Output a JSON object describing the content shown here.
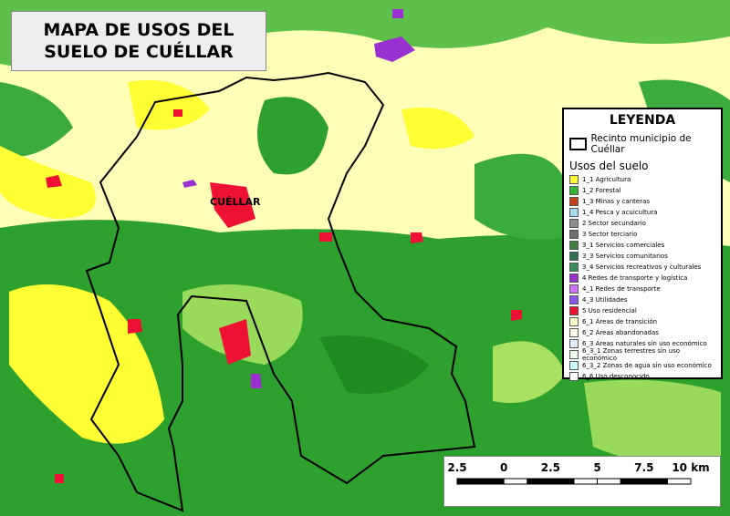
{
  "header": {
    "title": "MAPA DE USOS DEL SUELO DE CUÉLLAR"
  },
  "map": {
    "town_label": "CUÉLLAR"
  },
  "legend": {
    "title": "LEYENDA",
    "boundary": {
      "label": "Recinto municipio de Cuéllar"
    },
    "subtitle": "Usos del suelo",
    "items": [
      {
        "label": "1_1 Agricultura",
        "color": "#ffff33"
      },
      {
        "label": "1_2 Forestal",
        "color": "#33b833"
      },
      {
        "label": "1_3 Minas y canteras",
        "color": "#c8401a"
      },
      {
        "label": "1_4 Pesca y acuicultura",
        "color": "#a8dcf0"
      },
      {
        "label": "2 Sector secundario",
        "color": "#8c8c8c"
      },
      {
        "label": "3 Sector terciario",
        "color": "#6e6e6e"
      },
      {
        "label": "3_1 Servicios comerciales",
        "color": "#3f7f3f"
      },
      {
        "label": "3_3 Servicios comunitarios",
        "color": "#2f7050"
      },
      {
        "label": "3_4 Servicios recreativos y culturales",
        "color": "#3a9060"
      },
      {
        "label": "4 Redes de transporte y logística",
        "color": "#9b30d0"
      },
      {
        "label": "4_1 Redes de transporte",
        "color": "#d070ff"
      },
      {
        "label": "4_3 Utilidades",
        "color": "#8855ee"
      },
      {
        "label": "5 Uso residencial",
        "color": "#ee1133"
      },
      {
        "label": "6_1 Áreas de transición",
        "color": "#ffffc8"
      },
      {
        "label": "6_2 Áreas abandonadas",
        "color": "#fff8e8"
      },
      {
        "label": "6_3 Áreas naturales sin uso económico",
        "color": "#e0ecff"
      },
      {
        "label": "6_3_1 Zonas terrestres sin uso económico",
        "color": "#eaffea"
      },
      {
        "label": "6_3_2 Zonas de agua sin uso económico",
        "color": "#ccffff"
      },
      {
        "label": "6_6 Uso desconocido",
        "color": "#ffffff"
      }
    ]
  },
  "scale_bar": {
    "labels": [
      "2.5",
      "0",
      "2.5",
      "5",
      "7.5",
      "10 km"
    ]
  }
}
